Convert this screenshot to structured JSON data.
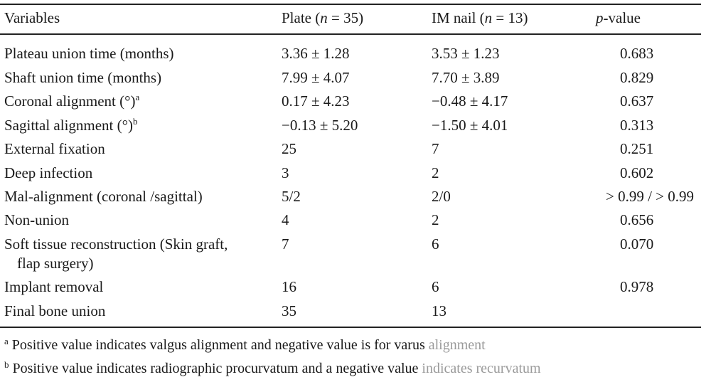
{
  "headers": {
    "variables": "Variables",
    "plate_label": "Plate (",
    "plate_n": "n",
    "plate_eq": " = 35)",
    "im_label": "IM nail (",
    "im_n": "n",
    "im_eq": " = 13)",
    "p_italic": "p",
    "p_rest": "-value"
  },
  "rows": [
    {
      "var": "Plateau union time (months)",
      "plate": "3.36 ± 1.28",
      "im": "3.53 ± 1.23",
      "p": "0.683"
    },
    {
      "var": "Shaft union time (months)",
      "plate": "7.99 ± 4.07",
      "im": "7.70 ± 3.89",
      "p": "0.829"
    },
    {
      "var": "Coronal alignment (°)",
      "sup": "a",
      "plate": "0.17 ± 4.23",
      "im": "−0.48 ± 4.17",
      "p": "0.637"
    },
    {
      "var": "Sagittal alignment (°)",
      "sup": "b",
      "plate": "−0.13 ± 5.20",
      "im": "−1.50 ± 4.01",
      "p": "0.313"
    },
    {
      "var": "External fixation",
      "plate": "25",
      "im": "7",
      "p": "0.251"
    },
    {
      "var": "Deep infection",
      "plate": "3",
      "im": "2",
      "p": "0.602"
    },
    {
      "var": "Mal-alignment (coronal /sagittal)",
      "plate": "5/2",
      "im": "2/0",
      "p": "> 0.99 / > 0.99"
    },
    {
      "var": "Non-union",
      "plate": "4",
      "im": "2",
      "p": "0.656"
    },
    {
      "var": "Soft tissue reconstruction (Skin graft,",
      "var2": "flap surgery)",
      "plate": "7",
      "im": "6",
      "p": "0.070"
    },
    {
      "var": "Implant removal",
      "plate": "16",
      "im": "6",
      "p": "0.978"
    },
    {
      "var": "Final bone union",
      "plate": "35",
      "im": "13",
      "p": ""
    }
  ],
  "footnotes": [
    {
      "mark": "a",
      "text": "Positive value indicates valgus alignment and negative value is for varus ",
      "faded": "alignment"
    },
    {
      "mark": "b",
      "text": "Positive value indicates radiographic procurvatum and a negative value ",
      "faded": "indicates recurvatum"
    }
  ]
}
